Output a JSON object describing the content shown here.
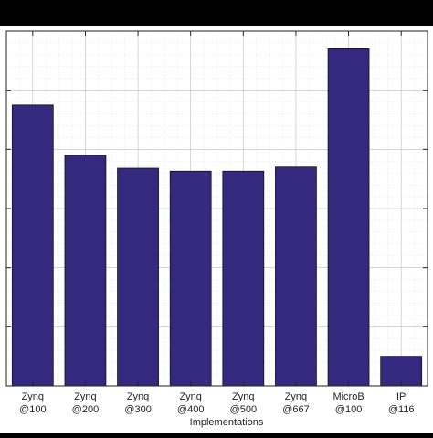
{
  "chart_data": {
    "type": "bar",
    "title": "",
    "xlabel": "Implementations",
    "ylabel": "",
    "categories": [
      [
        "Zynq",
        "@100"
      ],
      [
        "Zynq",
        "@200"
      ],
      [
        "Zynq",
        "@300"
      ],
      [
        "Zynq",
        "@400"
      ],
      [
        "Zynq",
        "@500"
      ],
      [
        "Zynq",
        "@667"
      ],
      [
        "MicroB",
        "@100"
      ],
      [
        "IP",
        "@116"
      ]
    ],
    "values": [
      4.75,
      3.9,
      3.68,
      3.63,
      3.63,
      3.7,
      5.7,
      0.5
    ],
    "ylim": [
      0,
      6
    ],
    "yticks": [
      0,
      1,
      2,
      3,
      4,
      5,
      6
    ],
    "grid": true,
    "minor_grid": true,
    "bar_color": "#34297f",
    "background": "#ffffff"
  }
}
